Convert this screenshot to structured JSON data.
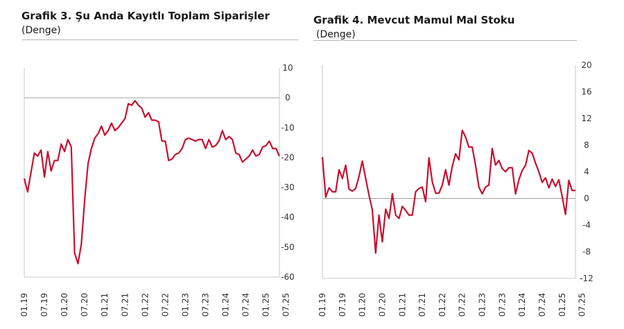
{
  "charts": [
    {
      "title": "Grafik 3. Şu Anda Kayıtlı Toplam Siparişler",
      "subtitle": "(Denge)"
    },
    {
      "title": "Grafik 4. Mevcut Mamul Mal Stoku",
      "subtitle": "(Denge)"
    }
  ],
  "chart_data": [
    {
      "type": "line",
      "title": "Grafik 3. Şu Anda Kayıtlı Toplam Siparişler",
      "subtitle": "(Denge)",
      "ylim": [
        -60,
        10
      ],
      "yticks": [
        10,
        0,
        -10,
        -20,
        -30,
        -40,
        -50,
        -60
      ],
      "x_start": "2019-01",
      "x_end": "2025-07",
      "xticks": [
        "01.19",
        "07.19",
        "01.20",
        "07.20",
        "01.21",
        "07.21",
        "01.22",
        "07.22",
        "01.23",
        "07.23",
        "01.24",
        "07.24",
        "01.25",
        "07.25"
      ],
      "grid": false,
      "series": [
        {
          "name": "",
          "color": "#c8102e",
          "values": [
            -27,
            -31.5,
            -25,
            -18.5,
            -19.5,
            -17.5,
            -26.5,
            -18,
            -24.5,
            -21,
            -21,
            -15.5,
            -18,
            -14,
            -16.5,
            -52,
            -55.5,
            -49,
            -34,
            -22,
            -17,
            -13.5,
            -12,
            -9.5,
            -12.5,
            -11,
            -8.5,
            -11,
            -10,
            -8.5,
            -7,
            -2,
            -2.5,
            -1,
            -2.5,
            -3.5,
            -6.5,
            -5,
            -7.5,
            -7.5,
            -8,
            -14.5,
            -14.5,
            -21,
            -20.5,
            -19,
            -18.5,
            -17,
            -14,
            -13.5,
            -14,
            -14.5,
            -14,
            -14,
            -17,
            -14,
            -16.5,
            -16,
            -14.5,
            -11,
            -14,
            -13,
            -14,
            -18.5,
            -19,
            -21.5,
            -20.5,
            -19.5,
            -17.5,
            -19.5,
            -19,
            -16.5,
            -16,
            -14.5,
            -17,
            -17,
            -19.5
          ]
        }
      ]
    },
    {
      "type": "line",
      "title": "Grafik 4. Mevcut Mamul Mal Stoku",
      "subtitle": "(Denge)",
      "ylim": [
        -12,
        20
      ],
      "yticks": [
        20,
        16,
        12,
        8,
        4,
        0,
        -4,
        -8,
        -12
      ],
      "x_start": "2019-01",
      "x_end": "2025-07",
      "xticks": [
        "01.19",
        "07.19",
        "01.20",
        "07.20",
        "01.21",
        "07.21",
        "01.22",
        "07.22",
        "01.23",
        "07.23",
        "01.24",
        "07.24",
        "01.25",
        "07.25"
      ],
      "grid": false,
      "series": [
        {
          "name": "",
          "color": "#c8102e",
          "values": [
            6.2,
            0.2,
            1.6,
            1.0,
            1.0,
            4.3,
            3.0,
            5.0,
            1.4,
            1.1,
            1.5,
            3.3,
            5.6,
            3.0,
            0.5,
            -1.7,
            -8.2,
            -2.5,
            -6.5,
            -1.6,
            -3.0,
            0.7,
            -2.5,
            -3.0,
            -1.2,
            -1.8,
            -2.5,
            -2.5,
            1.0,
            1.5,
            1.7,
            -0.5,
            6.1,
            2.5,
            0.8,
            0.8,
            2.0,
            4.3,
            2.0,
            4.8,
            6.7,
            5.8,
            10.2,
            9.2,
            7.7,
            7.7,
            5.0,
            1.7,
            0.7,
            1.7,
            2.0,
            7.5,
            5.0,
            5.7,
            4.5,
            4.0,
            4.6,
            4.6,
            0.7,
            2.8,
            4.2,
            5.0,
            7.2,
            6.8,
            5.3,
            4.0,
            2.4,
            3.1,
            1.6,
            2.9,
            1.8,
            2.8,
            0.3,
            -2.4,
            2.7,
            1.2,
            1.2
          ]
        }
      ]
    }
  ]
}
